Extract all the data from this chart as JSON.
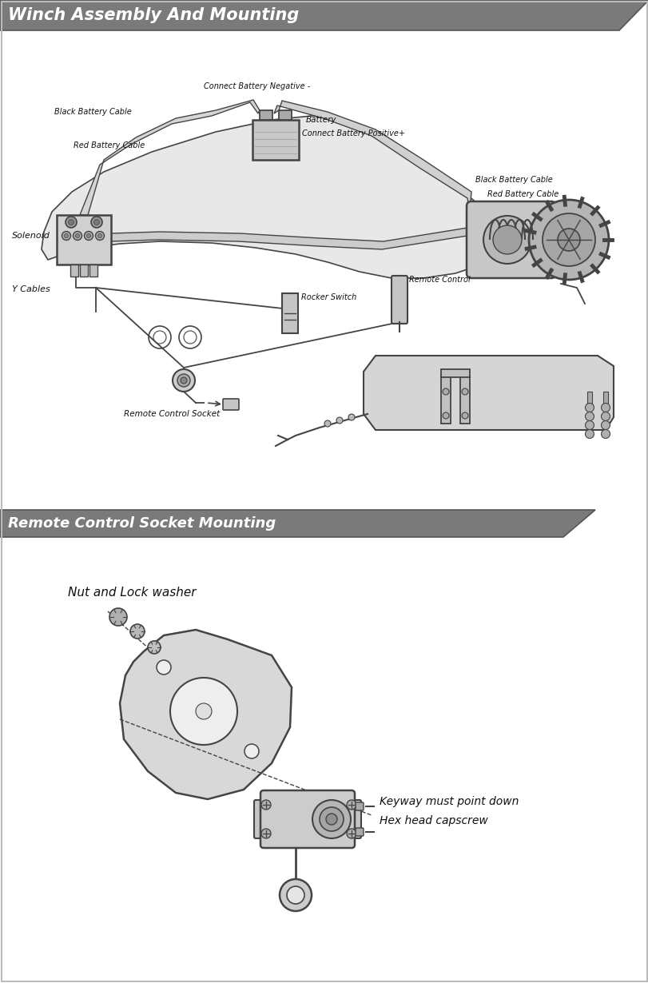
{
  "title1": "Winch Assembly And Mounting",
  "title2": "Remote Control Socket Mounting",
  "labels": {
    "battery": "Battery",
    "connect_neg": "Connect Battery Negative -",
    "connect_pos": "Connect Battery Positive+",
    "black_cable_top": "Black Battery Cable",
    "red_cable": "Red Battery Cable",
    "black_cable_right": "Black Battery Cable",
    "red_cable_right": "Red Battery Cable",
    "solenoid": "Solenoid",
    "rocker_switch": "Rocker Switch",
    "remote_control": "Remote Control",
    "y_cables": "Y Cables",
    "remote_socket": "Remote Control Socket",
    "nut_lock": "Nut and Lock washer",
    "keyway": "Keyway must point down",
    "hex_head": "Hex head capscrew"
  },
  "dc": "#444444",
  "fill_light": "#d8d8d8",
  "fill_mid": "#c0c0c0",
  "fill_dark": "#a0a0a0"
}
